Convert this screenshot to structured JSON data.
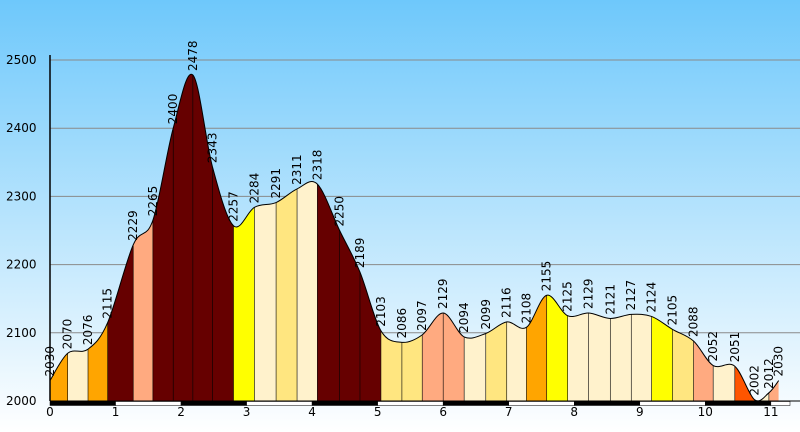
{
  "chart_data": {
    "type": "area",
    "title": "",
    "xlabel": "",
    "ylabel": "",
    "xlim": [
      0,
      11.3
    ],
    "ylim": [
      2000,
      2520
    ],
    "xticks": [
      0,
      1,
      2,
      3,
      4,
      5,
      6,
      7,
      8,
      9,
      10,
      11
    ],
    "yticks": [
      2000,
      2100,
      2200,
      2300,
      2400,
      2500
    ],
    "grid": "horizontal",
    "background": [
      "#6ec8fb",
      "#ffffff"
    ],
    "segment_colors": {
      "very_steep_up": "#660000",
      "steep_up": "#ffaa80",
      "moderate_up": "#ffa500",
      "gentle_up": "#ffff00",
      "mild": "#ffe680",
      "flat": "#fff2cc",
      "down": "#ff5500"
    },
    "points": [
      {
        "x": 0.0,
        "y": 2030,
        "label": "2030",
        "fill": "#ffa500"
      },
      {
        "x": 0.27,
        "y": 2070,
        "label": "2070",
        "fill": "#fff2cc"
      },
      {
        "x": 0.58,
        "y": 2076,
        "label": "2076",
        "fill": "#ffa500"
      },
      {
        "x": 0.88,
        "y": 2115,
        "label": "2115",
        "fill": "#660000"
      },
      {
        "x": 1.27,
        "y": 2229,
        "label": "2229",
        "fill": "#ffaa80"
      },
      {
        "x": 1.57,
        "y": 2265,
        "label": "2265",
        "fill": "#660000"
      },
      {
        "x": 1.88,
        "y": 2400,
        "label": "2400",
        "fill": "#660000"
      },
      {
        "x": 2.18,
        "y": 2478,
        "label": "2478",
        "fill": "#660000"
      },
      {
        "x": 2.48,
        "y": 2343,
        "label": "2343",
        "fill": "#660000"
      },
      {
        "x": 2.8,
        "y": 2257,
        "label": "2257",
        "fill": "#ffff00"
      },
      {
        "x": 3.12,
        "y": 2284,
        "label": "2284",
        "fill": "#fff2cc"
      },
      {
        "x": 3.45,
        "y": 2291,
        "label": "2291",
        "fill": "#ffe680"
      },
      {
        "x": 3.77,
        "y": 2311,
        "label": "2311",
        "fill": "#fff2cc"
      },
      {
        "x": 4.08,
        "y": 2318,
        "label": "2318",
        "fill": "#660000"
      },
      {
        "x": 4.42,
        "y": 2250,
        "label": "2250",
        "fill": "#660000"
      },
      {
        "x": 4.73,
        "y": 2189,
        "label": "2189",
        "fill": "#660000"
      },
      {
        "x": 5.05,
        "y": 2103,
        "label": "2103",
        "fill": "#ffe680"
      },
      {
        "x": 5.37,
        "y": 2086,
        "label": "2086",
        "fill": "#ffe680"
      },
      {
        "x": 5.68,
        "y": 2097,
        "label": "2097",
        "fill": "#ffaa80"
      },
      {
        "x": 6.0,
        "y": 2129,
        "label": "2129",
        "fill": "#ffaa80"
      },
      {
        "x": 6.32,
        "y": 2094,
        "label": "2094",
        "fill": "#fff2cc"
      },
      {
        "x": 6.65,
        "y": 2099,
        "label": "2099",
        "fill": "#ffe680"
      },
      {
        "x": 6.97,
        "y": 2116,
        "label": "2116",
        "fill": "#fff2cc"
      },
      {
        "x": 7.27,
        "y": 2108,
        "label": "2108",
        "fill": "#ffa500"
      },
      {
        "x": 7.58,
        "y": 2155,
        "label": "2155",
        "fill": "#ffff00"
      },
      {
        "x": 7.9,
        "y": 2125,
        "label": "2125",
        "fill": "#fff2cc"
      },
      {
        "x": 8.22,
        "y": 2129,
        "label": "2129",
        "fill": "#fff2cc"
      },
      {
        "x": 8.55,
        "y": 2121,
        "label": "2121",
        "fill": "#fff2cc"
      },
      {
        "x": 8.87,
        "y": 2127,
        "label": "2127",
        "fill": "#fff2cc"
      },
      {
        "x": 9.18,
        "y": 2124,
        "label": "2124",
        "fill": "#ffff00"
      },
      {
        "x": 9.5,
        "y": 2105,
        "label": "2105",
        "fill": "#ffe680"
      },
      {
        "x": 9.82,
        "y": 2088,
        "label": "2088",
        "fill": "#ffaa80"
      },
      {
        "x": 10.12,
        "y": 2052,
        "label": "2052",
        "fill": "#fff2cc"
      },
      {
        "x": 10.45,
        "y": 2051,
        "label": "2051",
        "fill": "#ff5500"
      },
      {
        "x": 10.75,
        "y": 2002,
        "label": "2002",
        "fill": "#fff2cc"
      },
      {
        "x": 10.97,
        "y": 2012,
        "label": "2012",
        "fill": "#ffaa80"
      },
      {
        "x": 11.12,
        "y": 2030,
        "label": "2030",
        "fill": null
      }
    ]
  }
}
